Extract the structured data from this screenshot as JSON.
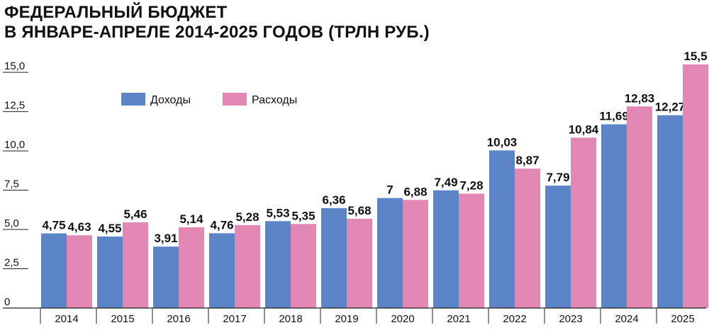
{
  "title_lines": [
    "ФЕДЕРАЛЬНЫЙ БЮДЖЕТ",
    "В ЯНВАРЕ-АПРЕЛЕ 2014-2025 ГОДОВ (ТРЛН РУБ.)"
  ],
  "colors": {
    "revenue": "#5b85c6",
    "expense": "#e387b5",
    "axis": "#222222"
  },
  "chart_data": {
    "type": "bar",
    "title": "ФЕДЕРАЛЬНЫЙ БЮДЖЕТ В ЯНВАРЕ-АПРЕЛЕ 2014-2025 ГОДОВ (ТРЛН РУБ.)",
    "categories": [
      "2014",
      "2015",
      "2016",
      "2017",
      "2018",
      "2019",
      "2020",
      "2021",
      "2022",
      "2023",
      "2024",
      "2025"
    ],
    "series": [
      {
        "name": "Доходы",
        "values": [
          4.75,
          4.55,
          3.91,
          4.76,
          5.53,
          6.36,
          7,
          7.49,
          10.03,
          7.79,
          11.69,
          12.27
        ],
        "labels": [
          "4,75",
          "4,55",
          "3,91",
          "4,76",
          "5,53",
          "6,36",
          "7",
          "7,49",
          "10,03",
          "7,79",
          "11,69",
          "12,27"
        ]
      },
      {
        "name": "Расходы",
        "values": [
          4.63,
          5.46,
          5.14,
          5.28,
          5.35,
          5.68,
          6.88,
          7.28,
          8.87,
          10.84,
          12.83,
          15.5
        ],
        "labels": [
          "4,63",
          "5,46",
          "5,14",
          "5,28",
          "5,35",
          "5,68",
          "6,88",
          "7,28",
          "8,87",
          "10,84",
          "12,83",
          "15,5"
        ]
      }
    ],
    "yticks": [
      0,
      2.5,
      5,
      7.5,
      10,
      12.5,
      15
    ],
    "ytick_labels": [
      "0",
      "2,5",
      "5,0",
      "7,5",
      "10,0",
      "12,5",
      "15,0"
    ],
    "ylim": [
      0,
      16
    ],
    "grid": false,
    "legend_position": "top-left"
  }
}
